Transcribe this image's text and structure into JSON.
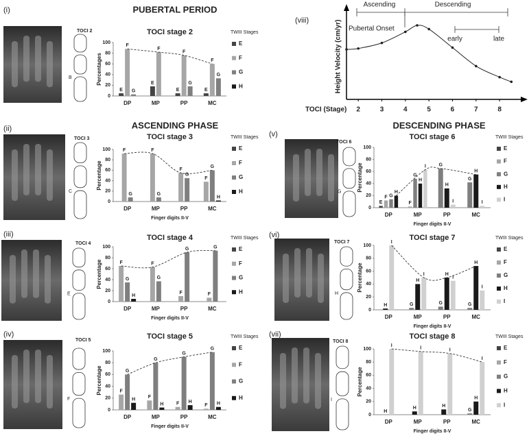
{
  "figure": {
    "headings": [
      "PUBERTAL PERIOD",
      "ASCENDING PHASE",
      "DESCENDING PHASE"
    ],
    "panels": [
      {
        "label": "(i)",
        "toci": "TOCI 2",
        "diagram_mark": "B"
      },
      {
        "label": "(ii)",
        "toci": "TOCI 3",
        "diagram_mark": "C"
      },
      {
        "label": "(iii)",
        "toci": "TOCI 4",
        "diagram_mark": "E"
      },
      {
        "label": "(iv)",
        "toci": "TOCI 5",
        "diagram_mark": "F"
      },
      {
        "label": "(v)",
        "toci": "TOCI 6",
        "diagram_mark": "G"
      },
      {
        "label": "(vi)",
        "toci": "TOCI 7",
        "diagram_mark": "H"
      },
      {
        "label": "(vii)",
        "toci": "TOCI 8",
        "diagram_mark": "I"
      },
      {
        "label": "(viii)"
      }
    ]
  },
  "chart_data": [
    {
      "type": "bar",
      "title": "TOCI stage 2",
      "ylabel": "Percentages",
      "legend_title": "TWIII Stages",
      "categories": [
        "DP",
        "MP",
        "PP",
        "MC"
      ],
      "ylim": [
        0,
        100
      ],
      "yticks": [
        0,
        20,
        40,
        60,
        80,
        100
      ],
      "trendline": true,
      "series": [
        {
          "name": "E",
          "color": "#444444",
          "values": [
            5,
            18,
            5,
            5
          ]
        },
        {
          "name": "F",
          "color": "#a6a6a6",
          "values": [
            88,
            82,
            76,
            60
          ]
        },
        {
          "name": "G",
          "color": "#7f7f7f",
          "values": [
            3,
            null,
            18,
            33
          ]
        },
        {
          "name": "H",
          "color": "#1a1a1a",
          "values": [
            null,
            null,
            null,
            null
          ]
        }
      ]
    },
    {
      "type": "bar",
      "title": "TOCI stage 3",
      "ylabel": "Percentage",
      "xlabel": "Finger digits II-V",
      "legend_title": "TWIII Stages",
      "categories": [
        "DP",
        "MP",
        "PP",
        "MC"
      ],
      "ylim": [
        0,
        100
      ],
      "yticks": [
        0,
        20,
        40,
        60,
        80,
        100
      ],
      "trendline": true,
      "series": [
        {
          "name": "E",
          "color": "#444444",
          "values": [
            null,
            null,
            null,
            null
          ]
        },
        {
          "name": "F",
          "color": "#a6a6a6",
          "values": [
            92,
            92,
            55,
            38
          ]
        },
        {
          "name": "G",
          "color": "#7f7f7f",
          "values": [
            8,
            8,
            45,
            60
          ]
        },
        {
          "name": "H",
          "color": "#1a1a1a",
          "values": [
            null,
            null,
            null,
            2
          ]
        }
      ]
    },
    {
      "type": "bar",
      "title": "TOCI stage 4",
      "ylabel": "Percentage",
      "xlabel": "Finger digits II-V",
      "legend_title": "TWIII Stages",
      "categories": [
        "DP",
        "MP",
        "PP",
        "MC"
      ],
      "ylim": [
        0,
        100
      ],
      "yticks": [
        0,
        20,
        40,
        60,
        80,
        100
      ],
      "trendline": true,
      "series": [
        {
          "name": "E",
          "color": "#444444",
          "values": [
            null,
            null,
            null,
            null
          ]
        },
        {
          "name": "F",
          "color": "#a6a6a6",
          "values": [
            65,
            63,
            10,
            7
          ]
        },
        {
          "name": "G",
          "color": "#7f7f7f",
          "values": [
            35,
            37,
            90,
            93
          ]
        },
        {
          "name": "H",
          "color": "#1a1a1a",
          "values": [
            5,
            null,
            null,
            null
          ]
        }
      ]
    },
    {
      "type": "bar",
      "title": "TOCI stage 5",
      "ylabel": "Percentage",
      "xlabel": "Finger digits II-V",
      "legend_title": "TWIII Stages",
      "categories": [
        "DP",
        "MP",
        "PP",
        "MC"
      ],
      "ylim": [
        0,
        100
      ],
      "yticks": [
        0,
        20,
        40,
        60,
        80,
        100
      ],
      "trendline": true,
      "series": [
        {
          "name": "E",
          "color": "#444444",
          "values": [
            null,
            null,
            null,
            null
          ]
        },
        {
          "name": "F",
          "color": "#a6a6a6",
          "values": [
            26,
            16,
            5,
            2
          ]
        },
        {
          "name": "G",
          "color": "#7f7f7f",
          "values": [
            60,
            80,
            90,
            98
          ]
        },
        {
          "name": "H",
          "color": "#1a1a1a",
          "values": [
            12,
            4,
            8,
            5
          ]
        }
      ]
    },
    {
      "type": "bar",
      "title": "TOCI stage 6",
      "ylabel": "Percentage",
      "xlabel": "Finger digits  II-V",
      "legend_title": "TWIII Stages",
      "categories": [
        "DP",
        "MP",
        "PP",
        "MC"
      ],
      "ylim": [
        0,
        100
      ],
      "yticks": [
        0,
        20,
        40,
        60,
        80,
        100
      ],
      "trendline": true,
      "series": [
        {
          "name": "E",
          "color": "#444444",
          "values": [
            3,
            null,
            null,
            null
          ]
        },
        {
          "name": "F",
          "color": "#a6a6a6",
          "values": [
            12,
            2,
            null,
            null
          ]
        },
        {
          "name": "G",
          "color": "#7f7f7f",
          "values": [
            14,
            48,
            65,
            42
          ]
        },
        {
          "name": "H",
          "color": "#1a1a1a",
          "values": [
            20,
            40,
            32,
            55
          ]
        },
        {
          "name": "I",
          "color": "#d0d0d0",
          "values": [
            null,
            63,
            5,
            3
          ]
        }
      ]
    },
    {
      "type": "bar",
      "title": "TOCI stage 7",
      "ylabel": "Percentage",
      "xlabel": "Finger digits II-V",
      "legend_title": "TWIII Stages",
      "categories": [
        "DP",
        "MP",
        "PP",
        "MC"
      ],
      "ylim": [
        0,
        100
      ],
      "yticks": [
        0,
        20,
        40,
        60,
        80,
        100
      ],
      "trendline": true,
      "series": [
        {
          "name": "E",
          "color": "#444444",
          "values": [
            null,
            null,
            null,
            null
          ]
        },
        {
          "name": "F",
          "color": "#a6a6a6",
          "values": [
            null,
            null,
            null,
            null
          ]
        },
        {
          "name": "G",
          "color": "#7f7f7f",
          "values": [
            null,
            3,
            5,
            3
          ]
        },
        {
          "name": "H",
          "color": "#1a1a1a",
          "values": [
            2,
            40,
            50,
            68
          ]
        },
        {
          "name": "I",
          "color": "#d0d0d0",
          "values": [
            100,
            50,
            45,
            30
          ]
        }
      ]
    },
    {
      "type": "bar",
      "title": "TOCI stage 8",
      "ylabel": "Percentage",
      "xlabel": "Finger digits II-V",
      "legend_title": "TWIII Stages",
      "categories": [
        "DP",
        "MP",
        "PP",
        "MC"
      ],
      "ylim": [
        0,
        100
      ],
      "yticks": [
        0,
        20,
        40,
        60,
        80,
        100
      ],
      "trendline": true,
      "series": [
        {
          "name": "E",
          "color": "#444444",
          "values": [
            null,
            null,
            null,
            null
          ]
        },
        {
          "name": "F",
          "color": "#a6a6a6",
          "values": [
            null,
            null,
            null,
            null
          ]
        },
        {
          "name": "G",
          "color": "#7f7f7f",
          "values": [
            null,
            null,
            null,
            2
          ]
        },
        {
          "name": "H",
          "color": "#1a1a1a",
          "values": [
            0,
            5,
            8,
            20
          ]
        },
        {
          "name": "I",
          "color": "#d0d0d0",
          "values": [
            100,
            96,
            93,
            80
          ]
        }
      ]
    },
    {
      "type": "line",
      "ylabel": "Height Velocity (cm/yr)",
      "xlabel": "TOCI (Stage)",
      "ascending": "Ascending",
      "descending": "Descending",
      "onset": "Pubertal Onset",
      "early": "early",
      "late": "late",
      "x": [
        1.5,
        2,
        3,
        4,
        4.5,
        5,
        6,
        7,
        8,
        8.5
      ],
      "values": [
        5.4,
        5.5,
        6.1,
        7.3,
        8,
        7.6,
        5.6,
        3.6,
        2.4,
        1.9
      ],
      "color": "#222222",
      "xlim": [
        1.5,
        8.9
      ],
      "ylim": [
        0,
        10
      ],
      "xticks": [
        2,
        3,
        4,
        5,
        6,
        7,
        8
      ]
    }
  ]
}
